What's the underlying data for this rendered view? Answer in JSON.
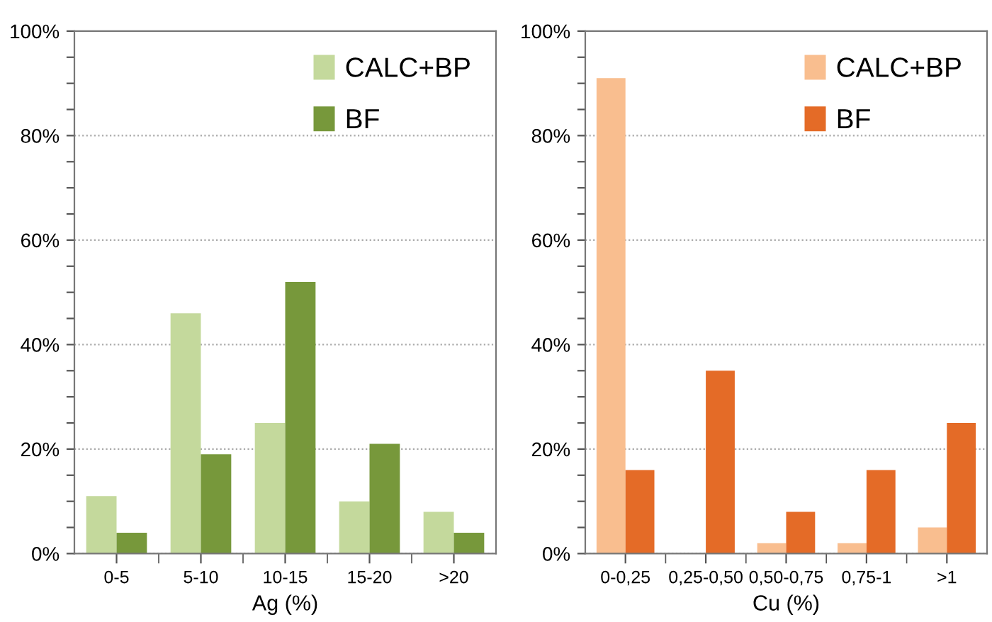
{
  "chart_data": [
    {
      "type": "bar",
      "xlabel": "Ag (%)",
      "categories": [
        "0-5",
        "5-10",
        "10-15",
        "15-20",
        ">20"
      ],
      "series": [
        {
          "name": "CALC+BP",
          "color": "#c4d99c",
          "values": [
            11,
            46,
            25,
            10,
            8
          ]
        },
        {
          "name": "BF",
          "color": "#77983b",
          "values": [
            4,
            19,
            52,
            21,
            4
          ]
        }
      ],
      "ylim": [
        0,
        100
      ],
      "yticks": [
        {
          "value": 0,
          "label": "0%"
        },
        {
          "value": 5,
          "label": null
        },
        {
          "value": 10,
          "label": null
        },
        {
          "value": 15,
          "label": null
        },
        {
          "value": 20,
          "label": "20%"
        },
        {
          "value": 25,
          "label": null
        },
        {
          "value": 30,
          "label": null
        },
        {
          "value": 35,
          "label": null
        },
        {
          "value": 40,
          "label": "40%"
        },
        {
          "value": 45,
          "label": null
        },
        {
          "value": 50,
          "label": null
        },
        {
          "value": 55,
          "label": null
        },
        {
          "value": 60,
          "label": "60%"
        },
        {
          "value": 65,
          "label": null
        },
        {
          "value": 70,
          "label": null
        },
        {
          "value": 75,
          "label": null
        },
        {
          "value": 80,
          "label": "80%"
        },
        {
          "value": 85,
          "label": null
        },
        {
          "value": 90,
          "label": null
        },
        {
          "value": 95,
          "label": null
        },
        {
          "value": 100,
          "label": "100%"
        }
      ],
      "grid": "y",
      "legend": "top right"
    },
    {
      "type": "bar",
      "xlabel": "Cu (%)",
      "categories": [
        "0-0,25",
        "0,25-0,50",
        "0,50-0,75",
        "0,75-1",
        ">1"
      ],
      "series": [
        {
          "name": "CALC+BP",
          "color": "#f9be8f",
          "values": [
            91,
            0,
            2,
            2,
            5
          ]
        },
        {
          "name": "BF",
          "color": "#e46b27",
          "values": [
            16,
            35,
            8,
            16,
            25
          ]
        }
      ],
      "ylim": [
        0,
        100
      ],
      "yticks": [
        {
          "value": 0,
          "label": "0%"
        },
        {
          "value": 5,
          "label": null
        },
        {
          "value": 10,
          "label": null
        },
        {
          "value": 15,
          "label": null
        },
        {
          "value": 20,
          "label": "20%"
        },
        {
          "value": 25,
          "label": null
        },
        {
          "value": 30,
          "label": null
        },
        {
          "value": 35,
          "label": null
        },
        {
          "value": 40,
          "label": "40%"
        },
        {
          "value": 45,
          "label": null
        },
        {
          "value": 50,
          "label": null
        },
        {
          "value": 55,
          "label": null
        },
        {
          "value": 60,
          "label": "60%"
        },
        {
          "value": 65,
          "label": null
        },
        {
          "value": 70,
          "label": null
        },
        {
          "value": 75,
          "label": null
        },
        {
          "value": 80,
          "label": "80%"
        },
        {
          "value": 85,
          "label": null
        },
        {
          "value": 90,
          "label": null
        },
        {
          "value": 95,
          "label": null
        },
        {
          "value": 100,
          "label": "100%"
        }
      ],
      "grid": "y",
      "legend": "top right"
    }
  ]
}
